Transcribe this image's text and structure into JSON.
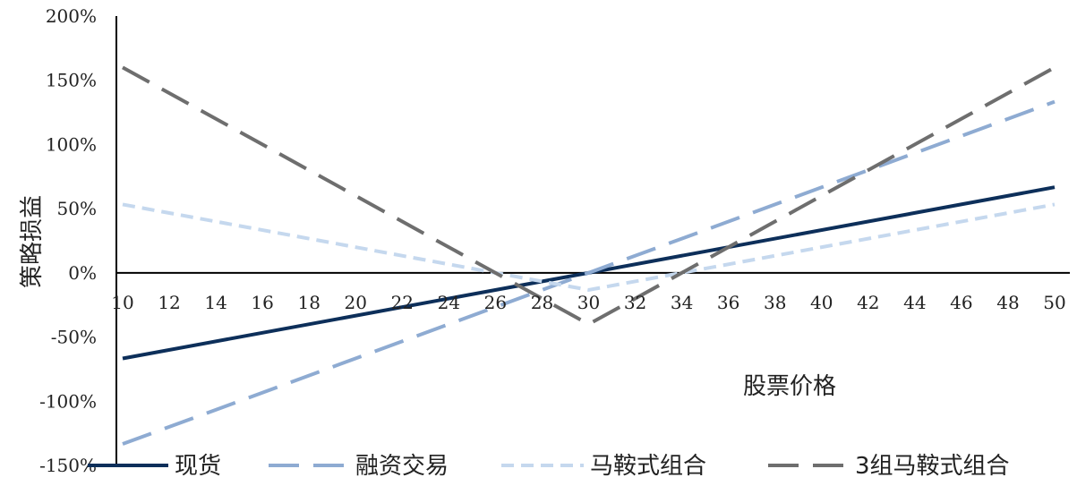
{
  "chart_data": {
    "type": "line",
    "xlabel": "股票价格",
    "ylabel": "策略损益",
    "x": [
      10,
      12,
      14,
      16,
      18,
      20,
      22,
      24,
      26,
      28,
      30,
      32,
      34,
      36,
      38,
      40,
      42,
      44,
      46,
      48,
      50
    ],
    "xticks": [
      "10",
      "12",
      "14",
      "16",
      "18",
      "20",
      "22",
      "24",
      "26",
      "28",
      "30",
      "32",
      "34",
      "36",
      "38",
      "40",
      "42",
      "44",
      "46",
      "48",
      "50"
    ],
    "yticks": [
      "200%",
      "150%",
      "100%",
      "50%",
      "0%",
      "-50%",
      "-100%",
      "-150%"
    ],
    "ytick_values": [
      200,
      150,
      100,
      50,
      0,
      -50,
      -100,
      -150
    ],
    "ylim": [
      -150,
      200
    ],
    "xlim": [
      10,
      50
    ],
    "grid": false,
    "legend_position": "bottom",
    "series": [
      {
        "name": "现货",
        "color": "#0d2f5a",
        "dash": "solid",
        "points": [
          [
            10,
            -66.7
          ],
          [
            50,
            66.7
          ]
        ]
      },
      {
        "name": "融资交易",
        "color": "#8eabd2",
        "dash": "long-dash",
        "points": [
          [
            10,
            -133.3
          ],
          [
            50,
            133.3
          ]
        ]
      },
      {
        "name": "马鞍式组合",
        "color": "#c5d8ee",
        "dash": "short-dash",
        "points": [
          [
            10,
            53.3
          ],
          [
            30,
            -13.3
          ],
          [
            50,
            53.3
          ]
        ]
      },
      {
        "name": "3组马鞍式组合",
        "color": "#6e6e6e",
        "dash": "long-dash",
        "points": [
          [
            10,
            160
          ],
          [
            30,
            -40
          ],
          [
            50,
            160
          ]
        ]
      }
    ]
  }
}
